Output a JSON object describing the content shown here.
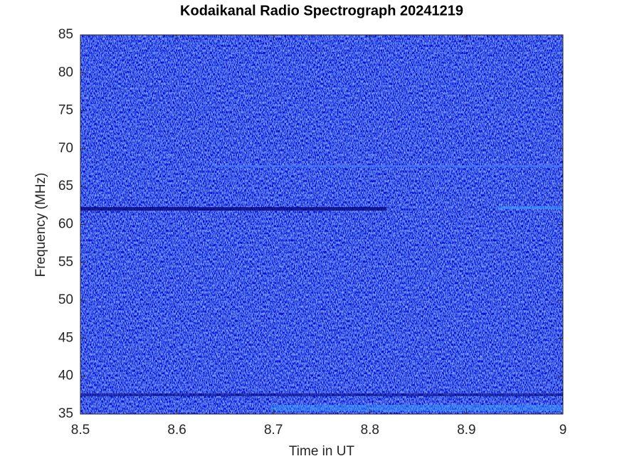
{
  "chart_data": {
    "type": "spectrogram",
    "title": "Kodaikanal Radio Spectrograph  20241219",
    "x_label": "Time in UT",
    "y_label": "Frequency (MHz)",
    "xlim": [
      8.5,
      9
    ],
    "xticks": [
      8.5,
      8.6,
      8.7,
      8.8,
      8.9,
      9
    ],
    "ylim": [
      35,
      85
    ],
    "yticks": [
      35,
      40,
      45,
      50,
      55,
      60,
      65,
      70,
      75,
      80,
      85
    ],
    "grid": false
  }
}
